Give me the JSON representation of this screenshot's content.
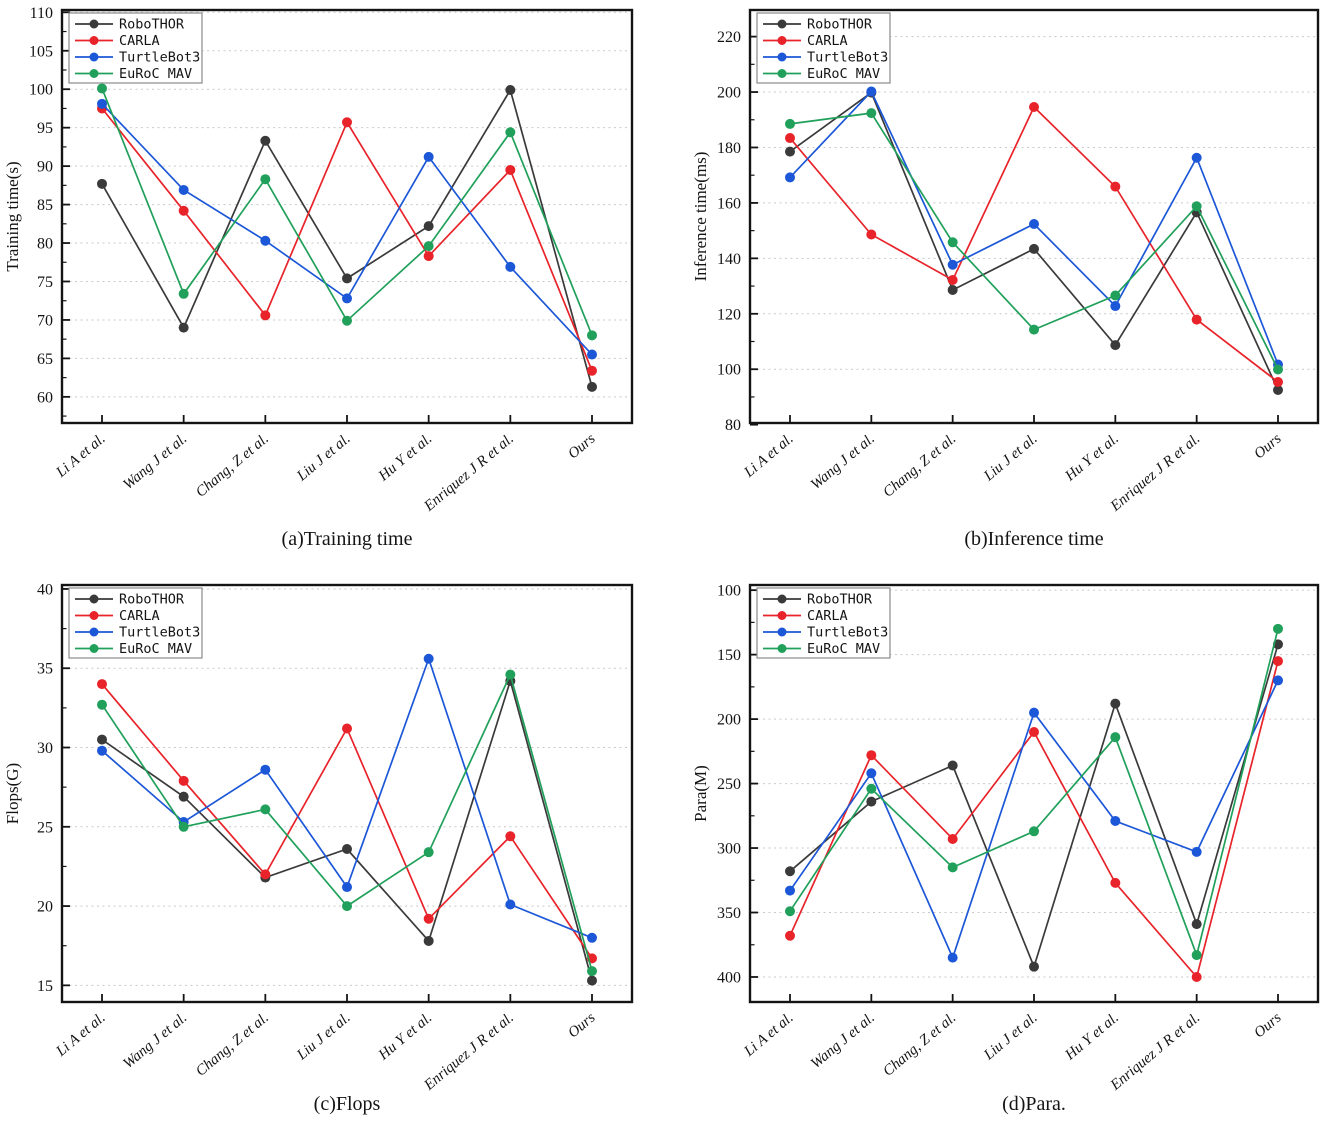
{
  "figure": {
    "background": "#ffffff",
    "grid_color": "#c9c9c9",
    "spine_color": "#141414",
    "legend_position": "top-left",
    "grid": "horizontal dashed lines at major y ticks",
    "series": [
      {
        "name": "RoboTHOR",
        "color": "#3a3a3a"
      },
      {
        "name": "CARLA",
        "color": "#e8232a"
      },
      {
        "name": "TurtleBot3",
        "color": "#1c57d8"
      },
      {
        "name": "EuRoC MAV",
        "color": "#20a05a"
      }
    ]
  },
  "categories": [
    "Li A et al.",
    "Wang J et al.",
    "Chang, Z et al.",
    "Liu J et al.",
    "Hu Y et al.",
    "Enriquez J R et al.",
    "Ours"
  ],
  "chart_data": [
    {
      "id": "training-time",
      "type": "line",
      "title": "(a)Training time",
      "xlabel": "",
      "ylabel": "Training time(s)",
      "categories": [
        "Li A et al.",
        "Wang J et al.",
        "Chang, Z et al.",
        "Liu J et al.",
        "Hu Y et al.",
        "Enriquez J R et al.",
        "Ours"
      ],
      "yticks": [
        60,
        65,
        70,
        75,
        80,
        85,
        90,
        95,
        100,
        105,
        110
      ],
      "minor_ytick_step": 2.5,
      "ylim": [
        56.6,
        110.3
      ],
      "inverted_y": false,
      "series": [
        {
          "name": "RoboTHOR",
          "values": [
            87.7,
            69.0,
            93.3,
            75.4,
            82.2,
            99.9,
            61.3
          ]
        },
        {
          "name": "CARLA",
          "values": [
            97.5,
            84.2,
            70.6,
            95.7,
            78.3,
            89.5,
            63.4
          ]
        },
        {
          "name": "TurtleBot3",
          "values": [
            98.1,
            86.9,
            80.3,
            72.8,
            91.2,
            76.9,
            65.5
          ]
        },
        {
          "name": "EuRoC MAV",
          "values": [
            100.1,
            73.4,
            88.3,
            69.9,
            79.6,
            94.4,
            68.0
          ]
        }
      ]
    },
    {
      "id": "inference-time",
      "type": "line",
      "title": "(b)Inference time",
      "xlabel": "",
      "ylabel": "Inference time(ms)",
      "categories": [
        "Li A et al.",
        "Wang J et al.",
        "Chang, Z et al.",
        "Liu J et al.",
        "Hu Y et al.",
        "Enriquez J R et al.",
        "Ours"
      ],
      "yticks": [
        80,
        100,
        120,
        140,
        160,
        180,
        200,
        220
      ],
      "minor_ytick_step": 10,
      "ylim": [
        80.6,
        229.6
      ],
      "inverted_y": false,
      "series": [
        {
          "name": "RoboTHOR",
          "values": [
            178.5,
            199.8,
            128.6,
            143.4,
            108.7,
            156.6,
            92.5
          ]
        },
        {
          "name": "CARLA",
          "values": [
            183.4,
            148.6,
            132.2,
            194.6,
            165.9,
            117.9,
            95.4
          ]
        },
        {
          "name": "TurtleBot3",
          "values": [
            169.2,
            200.2,
            137.7,
            152.4,
            122.8,
            176.3,
            101.7
          ]
        },
        {
          "name": "EuRoC MAV",
          "values": [
            188.5,
            192.4,
            145.8,
            114.3,
            126.6,
            158.8,
            99.9
          ]
        }
      ]
    },
    {
      "id": "flops",
      "type": "line",
      "title": "(c)Flops",
      "xlabel": "",
      "ylabel": "Flops(G)",
      "categories": [
        "Li A et al.",
        "Wang J et al.",
        "Chang, Z et al.",
        "Liu J et al.",
        "Hu Y et al.",
        "Enriquez J R et al.",
        "Ours"
      ],
      "yticks": [
        15,
        20,
        25,
        30,
        35,
        40
      ],
      "minor_ytick_step": 2.5,
      "ylim": [
        13.95,
        40.25
      ],
      "inverted_y": false,
      "series": [
        {
          "name": "RoboTHOR",
          "values": [
            30.5,
            26.9,
            21.8,
            23.6,
            17.8,
            34.2,
            15.3
          ]
        },
        {
          "name": "CARLA",
          "values": [
            34.0,
            27.9,
            22.0,
            31.2,
            19.2,
            24.4,
            16.7
          ]
        },
        {
          "name": "TurtleBot3",
          "values": [
            29.8,
            25.3,
            28.6,
            21.2,
            35.6,
            20.1,
            18.0
          ]
        },
        {
          "name": "EuRoC MAV",
          "values": [
            32.7,
            25.0,
            26.1,
            20.0,
            23.4,
            34.6,
            15.9
          ]
        }
      ]
    },
    {
      "id": "para",
      "type": "line",
      "title": "(d)Para.",
      "xlabel": "",
      "ylabel": "Para(M)",
      "categories": [
        "Li A et al.",
        "Wang J et al.",
        "Chang, Z et al.",
        "Liu J et al.",
        "Hu Y et al.",
        "Enriquez J R et al.",
        "Ours"
      ],
      "yticks": [
        100,
        150,
        200,
        250,
        300,
        350,
        400
      ],
      "minor_ytick_step": 25,
      "ylim": [
        96,
        419.4
      ],
      "inverted_y": true,
      "series": [
        {
          "name": "RoboTHOR",
          "values": [
            318,
            264,
            236,
            392,
            188,
            359,
            142
          ]
        },
        {
          "name": "CARLA",
          "values": [
            368,
            228,
            293,
            210,
            327,
            400,
            155
          ]
        },
        {
          "name": "TurtleBot3",
          "values": [
            333,
            242,
            385,
            195,
            279,
            303,
            170
          ]
        },
        {
          "name": "EuRoC MAV",
          "values": [
            349,
            254,
            315,
            287,
            214,
            383,
            130
          ]
        }
      ]
    }
  ]
}
